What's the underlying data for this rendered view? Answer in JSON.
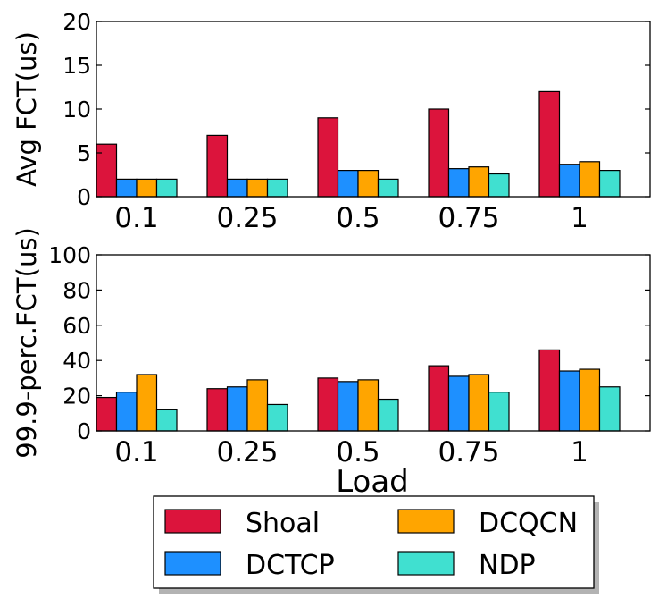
{
  "colors": {
    "Shoal": "#dc143c",
    "DCTCP": "#1e90ff",
    "DCQCN": "#ffa500",
    "NDP": "#40e0d0"
  },
  "xlabel": "Load",
  "legend": {
    "placement": "bottom-center",
    "entries": [
      "Shoal",
      "DCQCN",
      "DCTCP",
      "NDP"
    ]
  },
  "chart_data": [
    {
      "type": "bar",
      "categories": [
        "0.1",
        "0.25",
        "0.5",
        "0.75",
        "1"
      ],
      "ylabel": "Avg FCT(us)",
      "ylim": [
        0,
        20
      ],
      "yticks": [
        "0",
        "5",
        "10",
        "15",
        "20"
      ],
      "series": [
        {
          "name": "Shoal",
          "values": [
            6,
            7,
            9,
            10,
            12
          ]
        },
        {
          "name": "DCTCP",
          "values": [
            2,
            2,
            3,
            3.2,
            3.7
          ]
        },
        {
          "name": "DCQCN",
          "values": [
            2,
            2,
            3,
            3.4,
            4
          ]
        },
        {
          "name": "NDP",
          "values": [
            2,
            2,
            2,
            2.6,
            3
          ]
        }
      ]
    },
    {
      "type": "bar",
      "categories": [
        "0.1",
        "0.25",
        "0.5",
        "0.75",
        "1"
      ],
      "ylabel": "99.9-perc.FCT(us)",
      "ylim": [
        0,
        100
      ],
      "yticks": [
        "0",
        "20",
        "40",
        "60",
        "80",
        "100"
      ],
      "series": [
        {
          "name": "Shoal",
          "values": [
            19,
            24,
            30,
            37,
            46
          ]
        },
        {
          "name": "DCTCP",
          "values": [
            22,
            25,
            28,
            31,
            34
          ]
        },
        {
          "name": "DCQCN",
          "values": [
            32,
            29,
            29,
            32,
            35
          ]
        },
        {
          "name": "NDP",
          "values": [
            12,
            15,
            18,
            22,
            25
          ]
        }
      ]
    }
  ]
}
